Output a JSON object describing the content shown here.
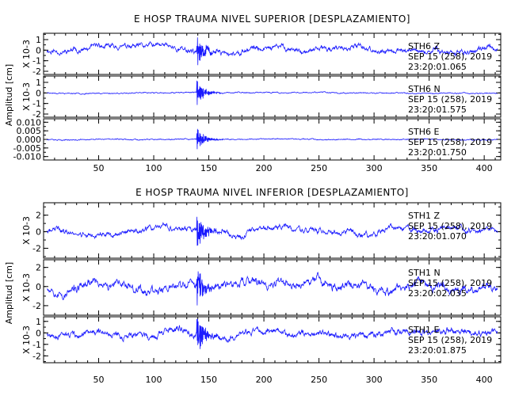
{
  "chart_data": [
    {
      "type": "line",
      "title": "E HOSP TRAUMA NIVEL SUPERIOR [DESPLAZAMIENTO]",
      "ylabel": "Amplitud [cm]",
      "xlim": [
        0,
        415
      ],
      "xticks": [
        50,
        100,
        150,
        200,
        250,
        300,
        350,
        400
      ],
      "line_color": "#1a1aff",
      "panels": [
        {
          "exponent_label": "X 10-3",
          "yticks": [
            1,
            0,
            -1,
            -2
          ],
          "yticklabels": [
            "1",
            "0",
            "-1",
            "-2"
          ],
          "ylim": [
            -2.3,
            1.6
          ],
          "annotation": [
            "STH6   Z",
            "SEP 15 (258), 2019",
            "23:20:01.065"
          ],
          "event_x": 139,
          "noise": 0.25,
          "drift": 0.45,
          "peak": 1.5,
          "peak_down": 2.1,
          "seed": 11
        },
        {
          "exponent_label": "X 10-3",
          "yticks": [
            1,
            0,
            -1,
            -2
          ],
          "yticklabels": [
            "1",
            "0",
            "-1",
            "-2"
          ],
          "ylim": [
            -2.3,
            1.6
          ],
          "annotation": [
            "STH6   N",
            "SEP 15 (258), 2019",
            "23:20:01.575"
          ],
          "event_x": 139,
          "noise": 0.06,
          "drift": 0.05,
          "peak": 1.3,
          "peak_down": 1.5,
          "seed": 23
        },
        {
          "exponent_label": "",
          "yticks": [
            0.01,
            0.005,
            0.0,
            -0.005,
            -0.01
          ],
          "yticklabels": [
            "0.010",
            "0.005",
            "0.000",
            "-0.005",
            "-0.010"
          ],
          "ylim": [
            -0.012,
            0.012
          ],
          "annotation": [
            "STH6   E",
            "SEP 15 (258), 2019",
            "23:20:01.750"
          ],
          "event_x": 139,
          "noise": 0.0004,
          "drift": 0.0003,
          "peak": 0.009,
          "peak_down": 0.009,
          "seed": 37
        }
      ]
    },
    {
      "type": "line",
      "title": "E HOSP TRAUMA NIVEL INFERIOR [DESPLAZAMIENTO]",
      "ylabel": "Amplitud [cm]",
      "xlim": [
        0,
        415
      ],
      "xticks": [
        50,
        100,
        150,
        200,
        250,
        300,
        350,
        400
      ],
      "line_color": "#1a1aff",
      "panels": [
        {
          "exponent_label": "X 10-3",
          "yticks": [
            2,
            0,
            -2
          ],
          "yticklabels": [
            "2",
            "0",
            "-2"
          ],
          "ylim": [
            -3.2,
            3.5
          ],
          "annotation": [
            "STH1   Z",
            "SEP 15 (258), 2019",
            "23:20:01.070"
          ],
          "event_x": 139,
          "noise": 0.35,
          "drift": 0.55,
          "peak": 2.6,
          "peak_down": 2.8,
          "seed": 41
        },
        {
          "exponent_label": "X 10-3",
          "yticks": [
            2,
            0,
            -2
          ],
          "yticklabels": [
            "2",
            "0",
            "-2"
          ],
          "ylim": [
            -3.0,
            2.8
          ],
          "annotation": [
            "STH1   N",
            "SEP 15 (258), 2019",
            "23:20:02.035"
          ],
          "event_x": 139,
          "noise": 0.45,
          "drift": 0.8,
          "peak": 2.2,
          "peak_down": 2.6,
          "seed": 53
        },
        {
          "exponent_label": "X 10-3",
          "yticks": [
            1,
            0,
            -1,
            -2
          ],
          "yticklabels": [
            "1",
            "0",
            "-1",
            "-2"
          ],
          "ylim": [
            -2.6,
            1.4
          ],
          "annotation": [
            "STH1   E",
            "SEP 15 (258), 2019",
            "23:20:01.875"
          ],
          "event_x": 139,
          "noise": 0.3,
          "drift": 0.4,
          "peak": 1.8,
          "peak_down": 2.4,
          "seed": 67
        }
      ]
    }
  ]
}
